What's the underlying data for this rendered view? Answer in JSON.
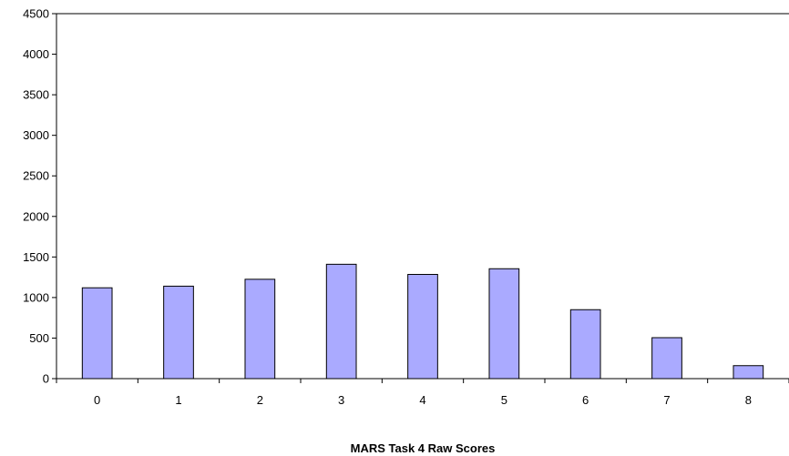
{
  "chart_data": {
    "type": "bar",
    "title": "",
    "xlabel": "MARS Task 4 Raw Scores",
    "ylabel": "",
    "categories": [
      "0",
      "1",
      "2",
      "3",
      "4",
      "5",
      "6",
      "7",
      "8"
    ],
    "values": [
      1120,
      1140,
      1225,
      1410,
      1285,
      1355,
      850,
      505,
      160
    ],
    "ylim": [
      0,
      4500
    ],
    "yticks": [
      "0",
      "500",
      "1000",
      "1500",
      "2000",
      "2500",
      "3000",
      "3500",
      "4000",
      "4500"
    ],
    "grid": false,
    "legend": "none",
    "colors": {
      "bar_fill": "#aaaaff",
      "bar_stroke": "#000000",
      "axis": "#000000"
    }
  }
}
